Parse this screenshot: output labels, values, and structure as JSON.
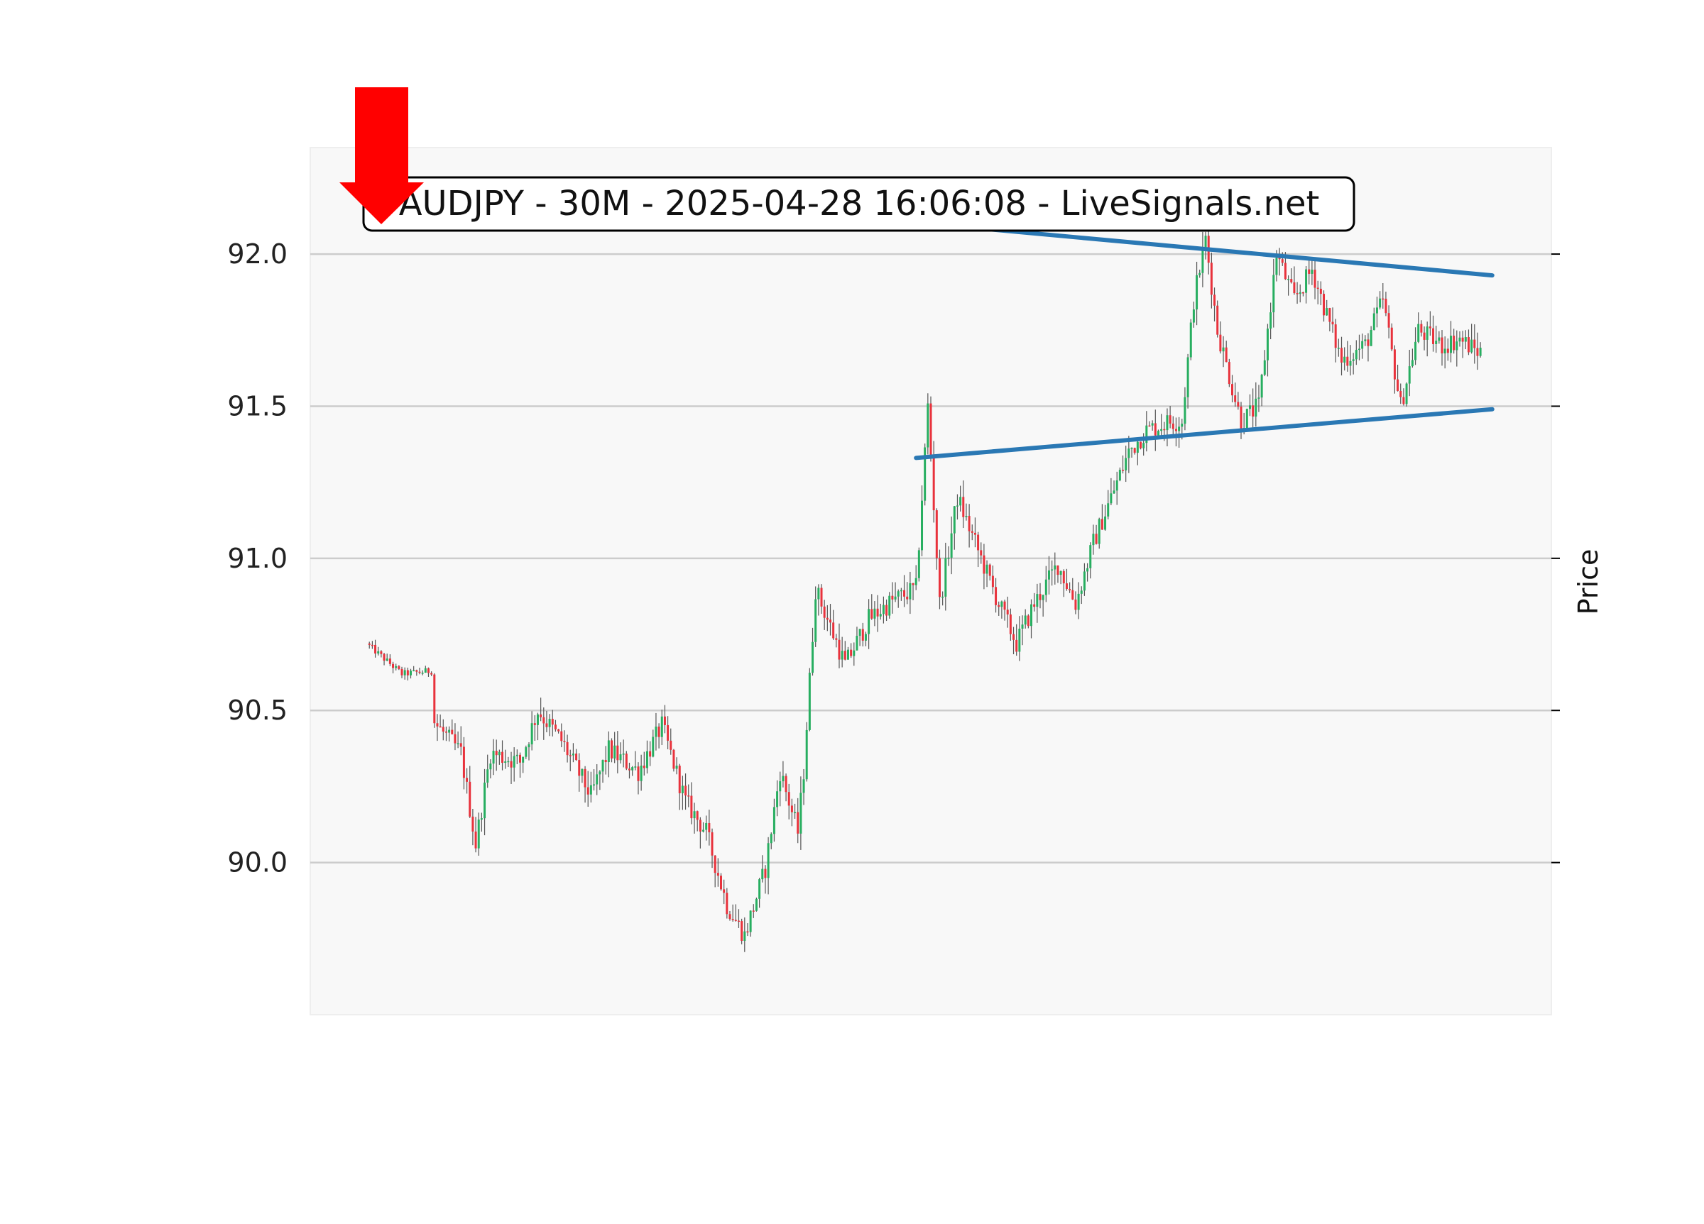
{
  "chart_data": {
    "type": "candlestick",
    "title": "AUDJPY - 30M - 2025-04-28 16:06:08 - LiveSignals.net",
    "ylabel": "Price",
    "xlabel": "",
    "ylim": [
      89.5,
      92.35
    ],
    "yticks": [
      90.0,
      90.5,
      91.0,
      91.5,
      92.0
    ],
    "ytick_labels": [
      "90.0",
      "90.5",
      "91.0",
      "91.5",
      "92.0"
    ],
    "grid": "horizontal",
    "x_range": [
      -20,
      400
    ],
    "colors": {
      "up": "#27ae60",
      "down": "#e8323c",
      "wick": "#555555",
      "trendline": "#2a78b4",
      "signal_arrow": "#ff0000",
      "plot_background": "#f8f8f8",
      "grid": "#cccccc"
    },
    "signal": {
      "direction": "sell",
      "icon": "down-arrow-icon",
      "x": 0
    },
    "trendlines": [
      {
        "name": "resistance",
        "x": [
          200,
          380
        ],
        "y": [
          92.09,
          91.93
        ]
      },
      {
        "name": "support",
        "x": [
          185,
          380
        ],
        "y": [
          91.33,
          91.49
        ]
      }
    ],
    "anchors": [
      [
        0,
        90.72
      ],
      [
        12,
        90.62
      ],
      [
        22,
        90.63
      ],
      [
        23,
        90.46
      ],
      [
        32,
        90.36
      ],
      [
        37,
        90.06
      ],
      [
        42,
        90.36
      ],
      [
        52,
        90.33
      ],
      [
        58,
        90.5
      ],
      [
        66,
        90.4
      ],
      [
        76,
        90.22
      ],
      [
        82,
        90.37
      ],
      [
        92,
        90.3
      ],
      [
        100,
        90.45
      ],
      [
        108,
        90.2
      ],
      [
        115,
        90.1
      ],
      [
        122,
        89.86
      ],
      [
        128,
        89.76
      ],
      [
        135,
        89.98
      ],
      [
        140,
        90.3
      ],
      [
        146,
        90.1
      ],
      [
        148,
        90.3
      ],
      [
        152,
        90.9
      ],
      [
        158,
        90.75
      ],
      [
        162,
        90.65
      ],
      [
        170,
        90.8
      ],
      [
        178,
        90.86
      ],
      [
        186,
        90.9
      ],
      [
        190,
        91.5
      ],
      [
        194,
        90.85
      ],
      [
        200,
        91.2
      ],
      [
        206,
        91.05
      ],
      [
        214,
        90.85
      ],
      [
        220,
        90.72
      ],
      [
        226,
        90.85
      ],
      [
        234,
        90.98
      ],
      [
        240,
        90.85
      ],
      [
        246,
        91.05
      ],
      [
        252,
        91.2
      ],
      [
        258,
        91.35
      ],
      [
        264,
        91.42
      ],
      [
        272,
        91.45
      ],
      [
        276,
        91.45
      ],
      [
        280,
        91.85
      ],
      [
        284,
        92.05
      ],
      [
        288,
        91.75
      ],
      [
        296,
        91.45
      ],
      [
        302,
        91.5
      ],
      [
        308,
        92.0
      ],
      [
        314,
        91.85
      ],
      [
        320,
        91.95
      ],
      [
        330,
        91.65
      ],
      [
        338,
        91.7
      ],
      [
        344,
        91.85
      ],
      [
        350,
        91.5
      ],
      [
        356,
        91.75
      ],
      [
        364,
        91.7
      ],
      [
        370,
        91.72
      ],
      [
        376,
        91.68
      ]
    ]
  }
}
